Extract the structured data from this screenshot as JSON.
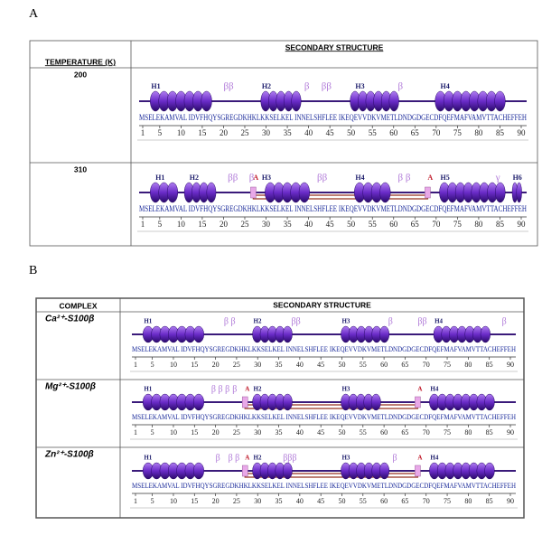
{
  "panels": [
    {
      "label": "A",
      "headers": [
        "TEMPERATURE (K)",
        "SECONDARY STRUCTURE"
      ],
      "rows": [
        {
          "label": "200",
          "annotations": [
            "H1",
            "ββ",
            "H2",
            "β",
            "ββ",
            "H3",
            "β",
            "H4"
          ]
        },
        {
          "label": "310",
          "annotations": [
            "H1",
            "H2",
            "ββ",
            "β",
            "A",
            "H3",
            "ββ",
            "H4",
            "β β",
            "A",
            "H5",
            "γ",
            "H6"
          ]
        }
      ]
    },
    {
      "label": "B",
      "headers": [
        "COMPLEX",
        "SECONDARY STRUCTURE"
      ],
      "rows": [
        {
          "label": "Ca²⁺-S100β",
          "annotations": [
            "H1",
            "β β",
            "H2",
            "ββ",
            "H3",
            "β",
            "ββ",
            "H4",
            "β"
          ]
        },
        {
          "label": "Mg²⁺-S100β",
          "annotations": [
            "H1",
            "β β β",
            "β",
            "A",
            "H2",
            "H3",
            "A",
            "H4"
          ]
        },
        {
          "label": "Zn²⁺-S100β",
          "annotations": [
            "H1",
            "β",
            "β β",
            "A",
            "H2",
            "βββ",
            "H3",
            "β",
            "A",
            "H4"
          ]
        }
      ]
    }
  ],
  "sequence": "MSELEKAMVAL IDVFHQYSGREGDKHKLKKSELKEL INNELSHFLEE IKEQEVVDKVMETLDNDGDGECDFQEFMAFVAMVTTACHEFFEH",
  "ruler": [
    1,
    5,
    10,
    15,
    20,
    25,
    30,
    35,
    40,
    45,
    50,
    55,
    60,
    65,
    70,
    75,
    80,
    85,
    90
  ]
}
